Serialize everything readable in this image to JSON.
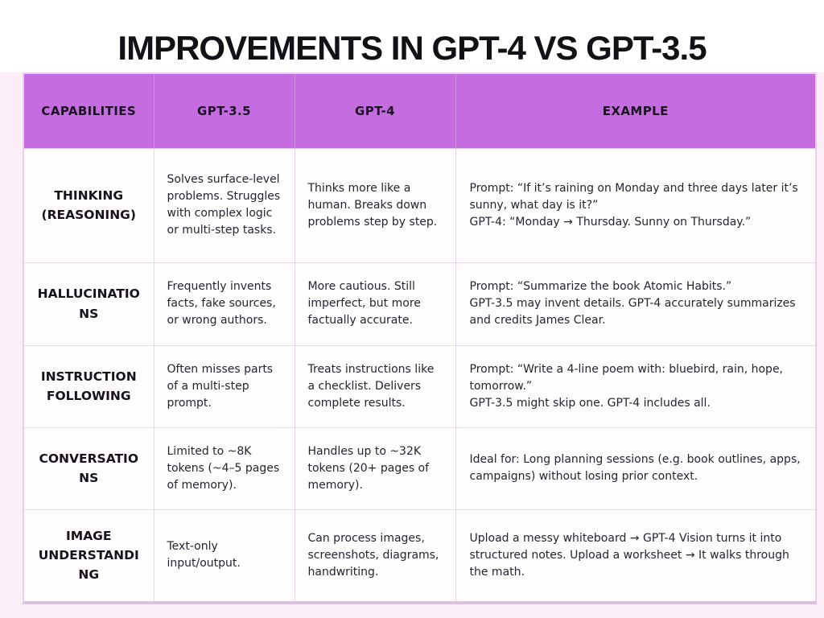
{
  "page": {
    "title": "IMPROVEMENTS IN GPT-4 VS GPT-3.5"
  },
  "colors": {
    "page_bg": "#fbeef6",
    "banner_bg": "#ffffff",
    "header_bg": "#c56ce0",
    "cell_border": "#ecd4ea",
    "title_text": "#131016",
    "body_text": "#28232e"
  },
  "chart_data": {
    "type": "table",
    "title": "IMPROVEMENTS IN GPT-4 VS GPT-3.5",
    "layout": {
      "header_position": "top",
      "grid": "on",
      "header_bg": "#c56ce0"
    },
    "columns": [
      "CAPABILITIES",
      "GPT-3.5",
      "GPT-4",
      "EXAMPLE"
    ],
    "rows": [
      {
        "capability": "THINKING (REASONING)",
        "gpt35": "Solves surface-level problems. Struggles with complex logic or multi-step tasks.",
        "gpt4": "Thinks more like a human. Breaks down problems step by step.",
        "example": "Prompt: “If it’s raining on Monday and three days later it’s sunny, what day is it?”\nGPT-4: “Monday → Thursday. Sunny on Thursday.”"
      },
      {
        "capability": "HALLUCINATIONS",
        "gpt35": "Frequently invents facts, fake sources, or wrong authors.",
        "gpt4": "More cautious. Still imperfect, but more factually accurate.",
        "example": "Prompt: “Summarize the book Atomic Habits.”\nGPT-3.5 may invent details. GPT-4 accurately summarizes and credits James Clear."
      },
      {
        "capability": "INSTRUCTION FOLLOWING",
        "gpt35": "Often misses parts of a multi-step prompt.",
        "gpt4": "Treats instructions like a checklist. Delivers complete results.",
        "example": "Prompt: “Write a 4-line poem with: bluebird, rain, hope, tomorrow.”\nGPT-3.5 might skip one. GPT-4 includes all."
      },
      {
        "capability": "CONVERSATIONS",
        "gpt35": "Limited to ~8K tokens (~4–5 pages of memory).",
        "gpt4": "Handles up to ~32K tokens (20+ pages of memory).",
        "example": "Ideal for: Long planning sessions (e.g. book outlines, apps, campaigns) without losing prior context."
      },
      {
        "capability": "IMAGE UNDERSTANDING",
        "gpt35": "Text-only input/output.",
        "gpt4": "Can process images, screenshots, diagrams, handwriting.",
        "example": "Upload a messy whiteboard → GPT-4 Vision turns it into structured notes. Upload a worksheet → It walks through the math."
      }
    ]
  }
}
